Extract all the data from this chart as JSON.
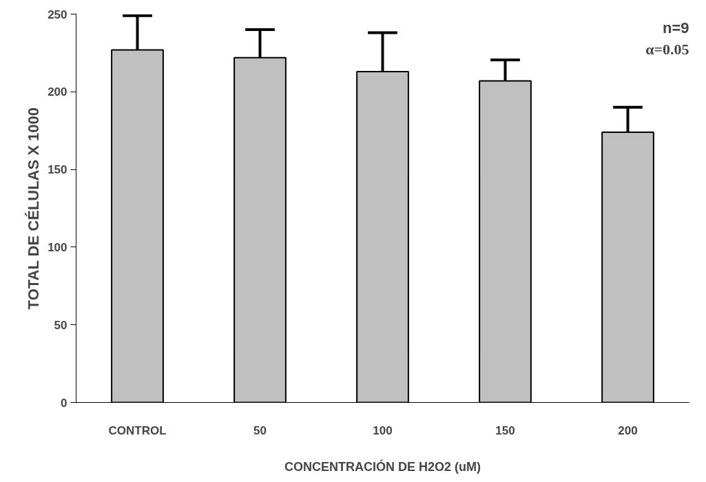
{
  "chart_data": {
    "type": "bar",
    "xlabel": "CONCENTRACIÓN DE H2O2 (uM)",
    "ylabel": "TOTAL DE CÉLULAS X 1000",
    "categories": [
      "CONTROL",
      "50",
      "100",
      "150",
      "200"
    ],
    "values": [
      227,
      222,
      213,
      207,
      174
    ],
    "errors": [
      [
        227,
        249
      ],
      [
        222,
        240
      ],
      [
        213,
        238
      ],
      [
        207,
        220.5
      ],
      [
        174,
        190
      ]
    ],
    "color": "#c0c0c0",
    "ylim": [
      0,
      250
    ],
    "yticks": [
      0,
      50,
      100,
      150,
      200,
      250
    ],
    "annotations": [
      "n=9",
      "α=0.05"
    ],
    "grid": false
  }
}
